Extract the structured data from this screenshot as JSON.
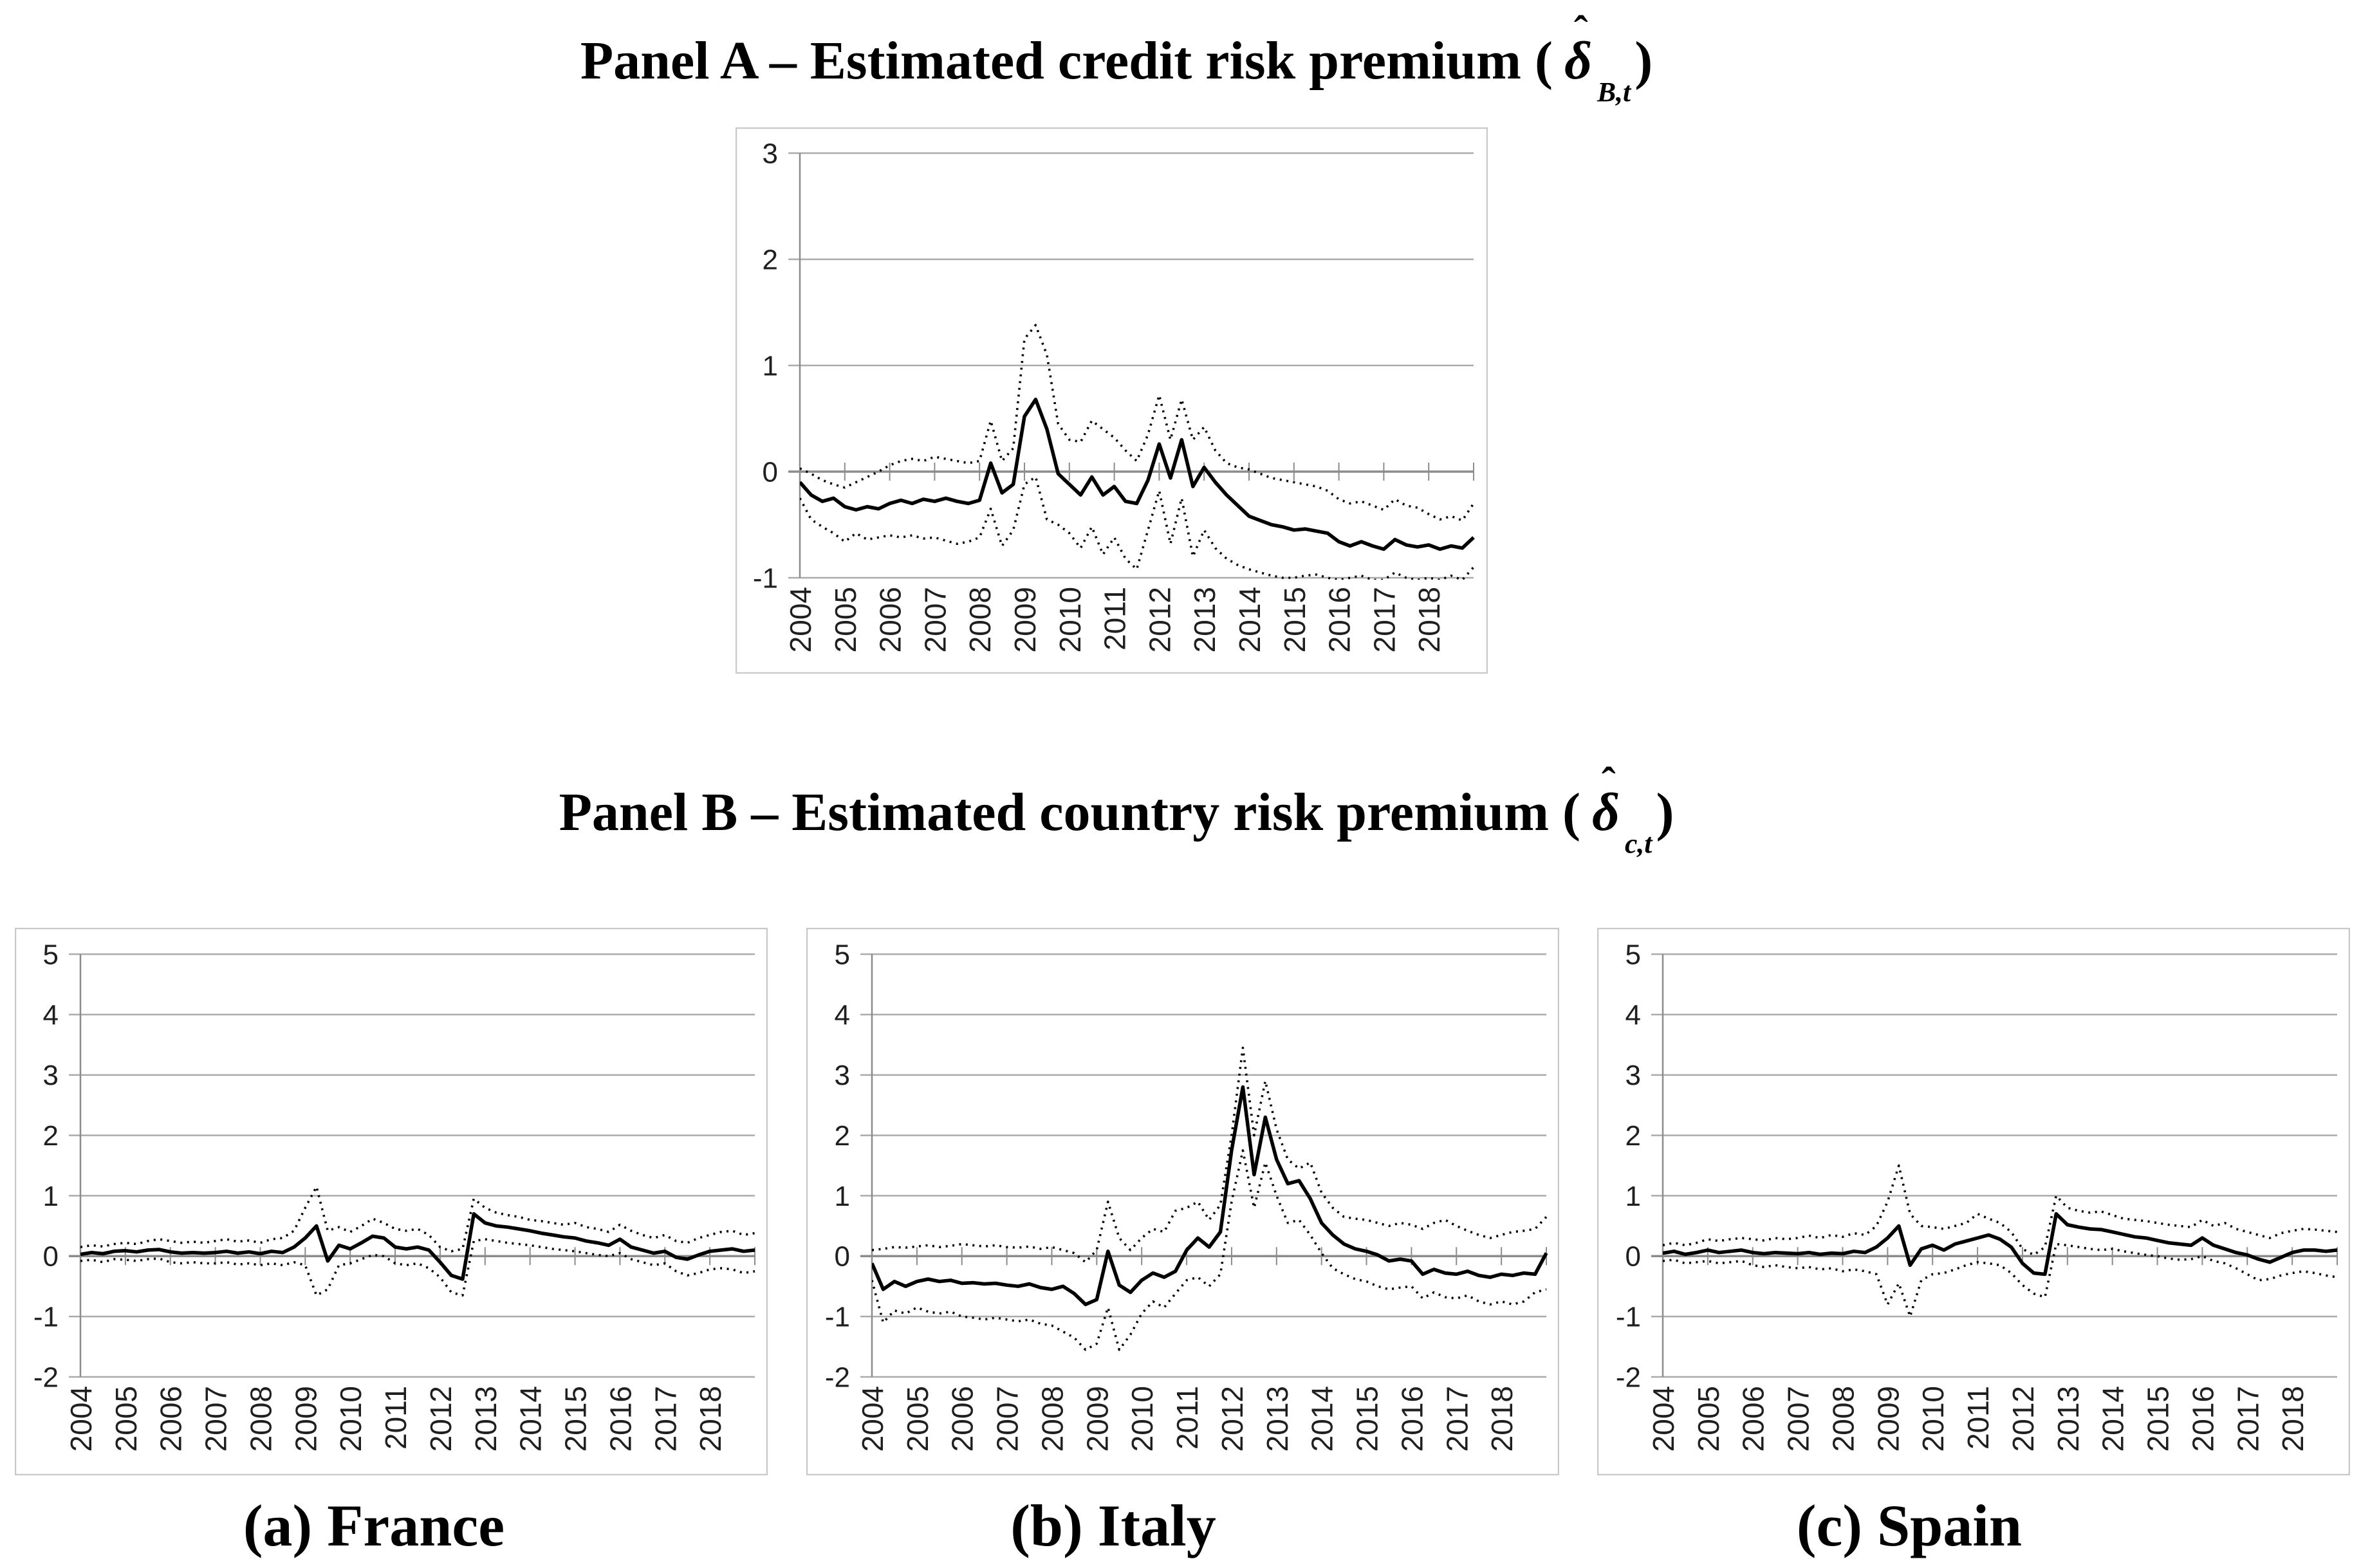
{
  "titles": {
    "panel_a": {
      "prefix": "Panel A – Estimated credit risk premium (",
      "hat": "ˆ",
      "symbol": "δ",
      "sub": "B,t",
      "suffix": ")"
    },
    "panel_b": {
      "prefix": "Panel B – Estimated country risk premium (",
      "hat": "ˆ",
      "symbol": "δ",
      "sub": "c,t",
      "suffix": ")"
    }
  },
  "colors": {
    "line": "#000000",
    "grid": "#ababab",
    "zero_axis": "#8c8c8c",
    "axis": "#8c8c8c",
    "border": "#c9c9c9",
    "tick_text": "#1f1f1f"
  },
  "chart_data": [
    {
      "type": "line",
      "id": "panel-a",
      "title": "Panel A – Estimated credit risk premium (δ̂_B,t)",
      "caption": "",
      "xlim": [
        2004,
        2019
      ],
      "ylim": [
        -1,
        3
      ],
      "y_ticks": [
        3,
        2,
        1,
        0,
        -1
      ],
      "x_labels": [
        "2004",
        "2005",
        "2006",
        "2007",
        "2008",
        "2009",
        "2010",
        "2011",
        "2012",
        "2013",
        "2014",
        "2015",
        "2016",
        "2017",
        "2018"
      ],
      "grid": "horizontal",
      "legend": null,
      "series": [
        {
          "name": "estimate",
          "style": "solid",
          "t0": 2004,
          "dt": 0.25,
          "values": [
            -0.1,
            -0.22,
            -0.28,
            -0.25,
            -0.33,
            -0.36,
            -0.33,
            -0.35,
            -0.3,
            -0.27,
            -0.3,
            -0.26,
            -0.28,
            -0.25,
            -0.28,
            -0.3,
            -0.27,
            0.08,
            -0.2,
            -0.12,
            0.52,
            0.68,
            0.4,
            -0.02,
            -0.12,
            -0.22,
            -0.05,
            -0.22,
            -0.14,
            -0.28,
            -0.3,
            -0.08,
            0.26,
            -0.06,
            0.3,
            -0.14,
            0.04,
            -0.1,
            -0.22,
            -0.32,
            -0.42,
            -0.46,
            -0.5,
            -0.52,
            -0.55,
            -0.54,
            -0.56,
            -0.58,
            -0.66,
            -0.7,
            -0.66,
            -0.7,
            -0.73,
            -0.64,
            -0.69,
            -0.71,
            -0.69,
            -0.73,
            -0.7,
            -0.72,
            -0.62
          ]
        },
        {
          "name": "upper-confidence-band",
          "style": "dotted",
          "t0": 2004,
          "dt": 0.25,
          "values": [
            0.03,
            -0.02,
            -0.08,
            -0.12,
            -0.15,
            -0.1,
            -0.05,
            0.0,
            0.06,
            0.1,
            0.12,
            0.1,
            0.14,
            0.12,
            0.1,
            0.08,
            0.1,
            0.48,
            0.1,
            0.22,
            1.25,
            1.38,
            1.1,
            0.45,
            0.3,
            0.28,
            0.48,
            0.4,
            0.32,
            0.2,
            0.1,
            0.35,
            0.72,
            0.3,
            0.68,
            0.3,
            0.42,
            0.2,
            0.08,
            0.04,
            0.02,
            -0.02,
            -0.06,
            -0.08,
            -0.1,
            -0.12,
            -0.14,
            -0.18,
            -0.26,
            -0.3,
            -0.28,
            -0.32,
            -0.36,
            -0.26,
            -0.32,
            -0.34,
            -0.4,
            -0.45,
            -0.42,
            -0.46,
            -0.3
          ]
        },
        {
          "name": "lower-confidence-band",
          "style": "dotted",
          "t0": 2004,
          "dt": 0.25,
          "values": [
            -0.25,
            -0.45,
            -0.52,
            -0.58,
            -0.66,
            -0.58,
            -0.64,
            -0.62,
            -0.6,
            -0.62,
            -0.6,
            -0.63,
            -0.62,
            -0.65,
            -0.68,
            -0.66,
            -0.62,
            -0.35,
            -0.7,
            -0.55,
            -0.12,
            -0.05,
            -0.45,
            -0.5,
            -0.58,
            -0.72,
            -0.52,
            -0.78,
            -0.62,
            -0.82,
            -0.92,
            -0.55,
            -0.18,
            -0.68,
            -0.25,
            -0.8,
            -0.55,
            -0.72,
            -0.82,
            -0.88,
            -0.92,
            -0.95,
            -0.98,
            -1.0,
            -1.0,
            -0.98,
            -0.97,
            -1.0,
            -1.02,
            -1.0,
            -0.98,
            -1.02,
            -1.02,
            -0.95,
            -1.0,
            -1.02,
            -1.0,
            -1.02,
            -0.98,
            -1.02,
            -0.9
          ]
        }
      ]
    },
    {
      "type": "line",
      "id": "france",
      "title": "Panel B – Estimated country risk premium (δ̂_c,t)",
      "caption": "(a) France",
      "xlim": [
        2004,
        2019
      ],
      "ylim": [
        -2,
        5
      ],
      "y_ticks": [
        5,
        4,
        3,
        2,
        1,
        0,
        -1,
        -2
      ],
      "x_labels": [
        "2004",
        "2005",
        "2006",
        "2007",
        "2008",
        "2009",
        "2010",
        "2011",
        "2012",
        "2013",
        "2014",
        "2015",
        "2016",
        "2017",
        "2018"
      ],
      "grid": "horizontal",
      "legend": null,
      "series": [
        {
          "name": "estimate",
          "style": "solid",
          "t0": 2004,
          "dt": 0.25,
          "values": [
            0.03,
            0.06,
            0.04,
            0.08,
            0.09,
            0.07,
            0.1,
            0.11,
            0.07,
            0.05,
            0.06,
            0.05,
            0.06,
            0.08,
            0.05,
            0.07,
            0.04,
            0.08,
            0.06,
            0.15,
            0.3,
            0.5,
            -0.08,
            0.18,
            0.12,
            0.22,
            0.33,
            0.3,
            0.15,
            0.12,
            0.15,
            0.1,
            -0.1,
            -0.32,
            -0.38,
            0.7,
            0.55,
            0.5,
            0.48,
            0.45,
            0.42,
            0.38,
            0.35,
            0.32,
            0.3,
            0.25,
            0.22,
            0.18,
            0.28,
            0.15,
            0.1,
            0.05,
            0.08,
            -0.02,
            -0.05,
            0.02,
            0.08,
            0.1,
            0.12,
            0.08,
            0.1
          ]
        },
        {
          "name": "upper-confidence-band",
          "style": "dotted",
          "t0": 2004,
          "dt": 0.25,
          "values": [
            0.15,
            0.18,
            0.16,
            0.2,
            0.22,
            0.2,
            0.25,
            0.28,
            0.25,
            0.22,
            0.24,
            0.22,
            0.25,
            0.28,
            0.24,
            0.26,
            0.22,
            0.28,
            0.3,
            0.42,
            0.8,
            1.15,
            0.42,
            0.48,
            0.4,
            0.5,
            0.62,
            0.55,
            0.45,
            0.42,
            0.45,
            0.35,
            0.15,
            0.08,
            0.12,
            0.95,
            0.8,
            0.72,
            0.68,
            0.65,
            0.6,
            0.58,
            0.55,
            0.52,
            0.55,
            0.48,
            0.45,
            0.4,
            0.52,
            0.42,
            0.35,
            0.3,
            0.35,
            0.25,
            0.22,
            0.3,
            0.35,
            0.4,
            0.42,
            0.35,
            0.38
          ]
        },
        {
          "name": "lower-confidence-band",
          "style": "dotted",
          "t0": 2004,
          "dt": 0.25,
          "values": [
            -0.08,
            -0.06,
            -0.1,
            -0.05,
            -0.06,
            -0.08,
            -0.05,
            -0.04,
            -0.1,
            -0.12,
            -0.1,
            -0.12,
            -0.12,
            -0.1,
            -0.14,
            -0.12,
            -0.15,
            -0.12,
            -0.15,
            -0.1,
            -0.15,
            -0.65,
            -0.55,
            -0.15,
            -0.12,
            -0.05,
            0.02,
            0.0,
            -0.12,
            -0.15,
            -0.12,
            -0.2,
            -0.35,
            -0.6,
            -0.65,
            0.25,
            0.28,
            0.25,
            0.22,
            0.2,
            0.18,
            0.15,
            0.12,
            0.1,
            0.08,
            0.05,
            0.02,
            0.0,
            0.05,
            -0.05,
            -0.1,
            -0.15,
            -0.12,
            -0.25,
            -0.32,
            -0.28,
            -0.22,
            -0.2,
            -0.22,
            -0.28,
            -0.25
          ]
        }
      ]
    },
    {
      "type": "line",
      "id": "italy",
      "title": "Panel B – Estimated country risk premium (δ̂_c,t)",
      "caption": "(b) Italy",
      "xlim": [
        2004,
        2019
      ],
      "ylim": [
        -2,
        5
      ],
      "y_ticks": [
        5,
        4,
        3,
        2,
        1,
        0,
        -1,
        -2
      ],
      "x_labels": [
        "2004",
        "2005",
        "2006",
        "2007",
        "2008",
        "2009",
        "2010",
        "2011",
        "2012",
        "2013",
        "2014",
        "2015",
        "2016",
        "2017",
        "2018"
      ],
      "grid": "horizontal",
      "legend": null,
      "series": [
        {
          "name": "estimate",
          "style": "solid",
          "t0": 2004,
          "dt": 0.25,
          "values": [
            -0.12,
            -0.55,
            -0.42,
            -0.5,
            -0.42,
            -0.38,
            -0.42,
            -0.4,
            -0.45,
            -0.44,
            -0.46,
            -0.45,
            -0.48,
            -0.5,
            -0.46,
            -0.52,
            -0.55,
            -0.5,
            -0.62,
            -0.8,
            -0.72,
            0.08,
            -0.48,
            -0.6,
            -0.4,
            -0.28,
            -0.35,
            -0.25,
            0.1,
            0.3,
            0.15,
            0.4,
            1.75,
            2.8,
            1.35,
            2.3,
            1.6,
            1.2,
            1.25,
            0.95,
            0.55,
            0.35,
            0.2,
            0.12,
            0.08,
            0.02,
            -0.08,
            -0.05,
            -0.08,
            -0.3,
            -0.22,
            -0.28,
            -0.3,
            -0.25,
            -0.32,
            -0.35,
            -0.3,
            -0.32,
            -0.28,
            -0.3,
            0.05
          ]
        },
        {
          "name": "upper-confidence-band",
          "style": "dotted",
          "t0": 2004,
          "dt": 0.25,
          "values": [
            0.1,
            0.12,
            0.15,
            0.14,
            0.16,
            0.18,
            0.15,
            0.17,
            0.2,
            0.18,
            0.16,
            0.18,
            0.15,
            0.14,
            0.16,
            0.12,
            0.15,
            0.1,
            0.05,
            -0.1,
            0.1,
            0.9,
            0.3,
            0.1,
            0.3,
            0.45,
            0.4,
            0.75,
            0.8,
            0.9,
            0.6,
            0.85,
            2.0,
            3.45,
            2.0,
            2.9,
            2.1,
            1.6,
            1.45,
            1.55,
            1.05,
            0.8,
            0.65,
            0.62,
            0.6,
            0.55,
            0.5,
            0.55,
            0.52,
            0.45,
            0.55,
            0.6,
            0.5,
            0.42,
            0.35,
            0.3,
            0.35,
            0.4,
            0.42,
            0.45,
            0.65
          ]
        },
        {
          "name": "lower-confidence-band",
          "style": "dotted",
          "t0": 2004,
          "dt": 0.25,
          "values": [
            -0.4,
            -1.1,
            -0.9,
            -0.95,
            -0.85,
            -0.92,
            -0.95,
            -0.92,
            -1.0,
            -1.02,
            -1.05,
            -1.02,
            -1.05,
            -1.08,
            -1.05,
            -1.12,
            -1.15,
            -1.25,
            -1.35,
            -1.55,
            -1.45,
            -0.85,
            -1.55,
            -1.3,
            -0.95,
            -0.75,
            -0.85,
            -0.62,
            -0.4,
            -0.35,
            -0.5,
            -0.3,
            0.9,
            1.75,
            0.8,
            1.55,
            1.0,
            0.55,
            0.6,
            0.35,
            0.05,
            -0.2,
            -0.3,
            -0.38,
            -0.42,
            -0.5,
            -0.55,
            -0.52,
            -0.5,
            -0.7,
            -0.6,
            -0.68,
            -0.7,
            -0.65,
            -0.75,
            -0.8,
            -0.75,
            -0.8,
            -0.75,
            -0.6,
            -0.55
          ]
        }
      ]
    },
    {
      "type": "line",
      "id": "spain",
      "title": "Panel B – Estimated country risk premium (δ̂_c,t)",
      "caption": "(c) Spain",
      "xlim": [
        2004,
        2019
      ],
      "ylim": [
        -2,
        5
      ],
      "y_ticks": [
        5,
        4,
        3,
        2,
        1,
        0,
        -1,
        -2
      ],
      "x_labels": [
        "2004",
        "2005",
        "2006",
        "2007",
        "2008",
        "2009",
        "2010",
        "2011",
        "2012",
        "2013",
        "2014",
        "2015",
        "2016",
        "2017",
        "2018"
      ],
      "grid": "horizontal",
      "legend": null,
      "series": [
        {
          "name": "estimate",
          "style": "solid",
          "t0": 2004,
          "dt": 0.25,
          "values": [
            0.05,
            0.08,
            0.03,
            0.06,
            0.1,
            0.06,
            0.08,
            0.1,
            0.06,
            0.04,
            0.06,
            0.05,
            0.04,
            0.06,
            0.03,
            0.05,
            0.04,
            0.08,
            0.06,
            0.15,
            0.3,
            0.5,
            -0.15,
            0.12,
            0.18,
            0.1,
            0.2,
            0.25,
            0.3,
            0.35,
            0.28,
            0.15,
            -0.12,
            -0.28,
            -0.3,
            0.7,
            0.52,
            0.48,
            0.45,
            0.44,
            0.4,
            0.36,
            0.32,
            0.3,
            0.26,
            0.22,
            0.2,
            0.18,
            0.3,
            0.18,
            0.12,
            0.06,
            0.02,
            -0.05,
            -0.1,
            -0.02,
            0.06,
            0.1,
            0.1,
            0.08,
            0.1
          ]
        },
        {
          "name": "upper-confidence-band",
          "style": "dotted",
          "t0": 2004,
          "dt": 0.25,
          "values": [
            0.18,
            0.22,
            0.18,
            0.22,
            0.28,
            0.25,
            0.28,
            0.3,
            0.28,
            0.26,
            0.3,
            0.28,
            0.3,
            0.34,
            0.3,
            0.35,
            0.32,
            0.38,
            0.35,
            0.5,
            0.9,
            1.5,
            0.7,
            0.5,
            0.48,
            0.45,
            0.5,
            0.55,
            0.7,
            0.62,
            0.55,
            0.4,
            0.12,
            0.02,
            0.15,
            1.0,
            0.8,
            0.75,
            0.72,
            0.74,
            0.68,
            0.62,
            0.6,
            0.58,
            0.55,
            0.52,
            0.5,
            0.48,
            0.6,
            0.5,
            0.55,
            0.45,
            0.4,
            0.35,
            0.3,
            0.38,
            0.42,
            0.45,
            0.44,
            0.42,
            0.4
          ]
        },
        {
          "name": "lower-confidence-band",
          "style": "dotted",
          "t0": 2004,
          "dt": 0.25,
          "values": [
            -0.08,
            -0.06,
            -0.12,
            -0.1,
            -0.08,
            -0.12,
            -0.1,
            -0.08,
            -0.15,
            -0.18,
            -0.15,
            -0.18,
            -0.2,
            -0.18,
            -0.22,
            -0.2,
            -0.25,
            -0.22,
            -0.25,
            -0.3,
            -0.8,
            -0.45,
            -1.0,
            -0.4,
            -0.3,
            -0.28,
            -0.22,
            -0.15,
            -0.1,
            -0.12,
            -0.15,
            -0.28,
            -0.48,
            -0.62,
            -0.68,
            0.2,
            0.18,
            0.15,
            0.12,
            0.1,
            0.12,
            0.08,
            0.05,
            0.02,
            0.0,
            -0.04,
            -0.06,
            -0.05,
            0.0,
            -0.08,
            -0.12,
            -0.2,
            -0.3,
            -0.4,
            -0.38,
            -0.32,
            -0.28,
            -0.25,
            -0.28,
            -0.32,
            -0.35
          ]
        }
      ]
    }
  ]
}
